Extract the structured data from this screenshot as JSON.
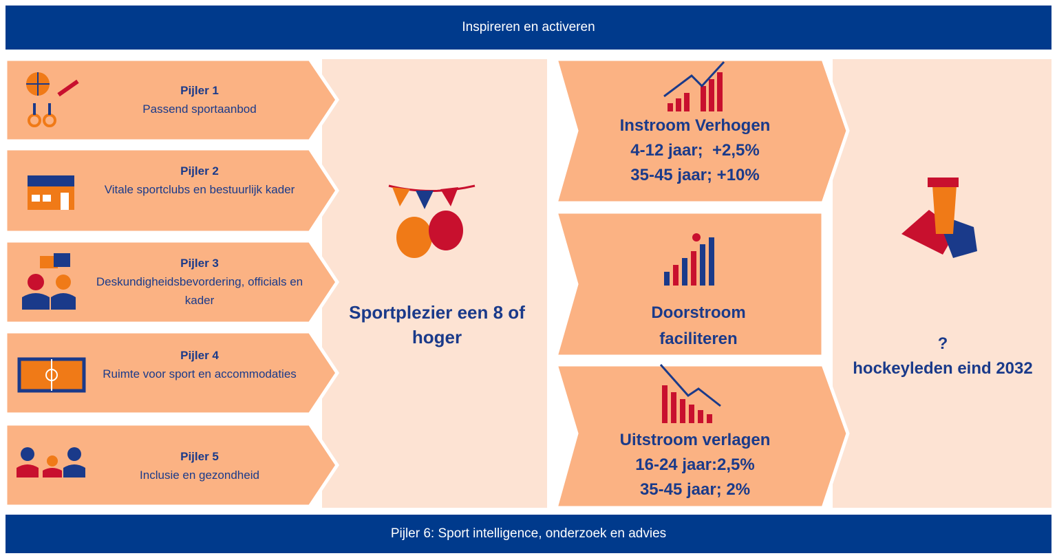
{
  "header": {
    "title": "Inspireren en activeren"
  },
  "pillars": [
    {
      "label": "Pijler 1",
      "text": "Passend sportaanbod"
    },
    {
      "label": "Pijler 2",
      "text": "Vitale sportclubs en bestuurlijk kader"
    },
    {
      "label": "Pijler 3",
      "text": "Deskundigheidsbevordering, officials en kader"
    },
    {
      "label": "Pijler 4",
      "text": "Ruimte voor sport en accommodaties"
    },
    {
      "label": "Pijler 5",
      "text": "Inclusie en gezondheid"
    }
  ],
  "center": {
    "text": "Sportplezier een 8 of hoger"
  },
  "outcomes": [
    {
      "lines": [
        "Instroom Verhogen",
        "4-12 jaar;  +2,5%",
        "35-45 jaar; +10%"
      ]
    },
    {
      "lines": [
        "Doorstroom faciliteren"
      ]
    },
    {
      "lines": [
        "Uitstroom verlagen",
        "16-24 jaar:2,5%",
        "35-45 jaar; 2%"
      ]
    }
  ],
  "goal": {
    "lines": [
      "?",
      "hockeyleden eind 2032"
    ]
  },
  "footer": {
    "title": "Pijler 6: Sport intelligence, onderzoek en advies"
  }
}
